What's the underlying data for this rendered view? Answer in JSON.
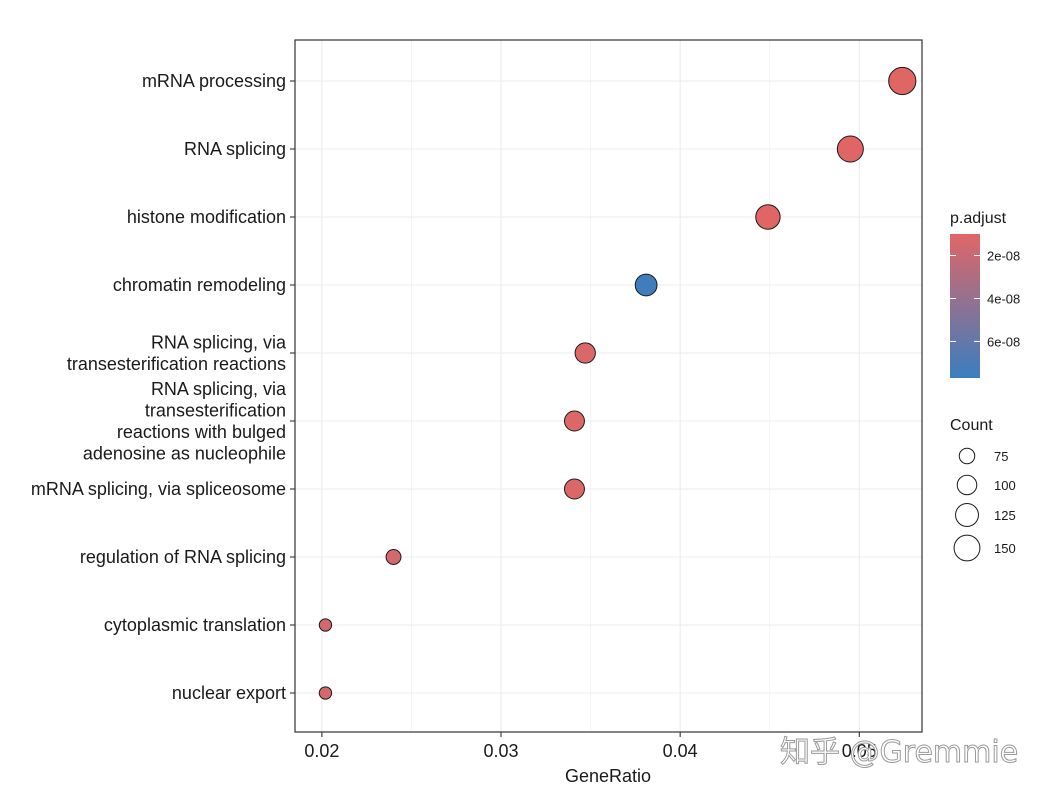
{
  "chart_data": {
    "type": "scatter",
    "xlabel": "GeneRatio",
    "x_ticks": [
      0.02,
      0.03,
      0.04,
      0.05
    ],
    "x_tick_labels": [
      "0.02",
      "0.03",
      "0.04",
      "0.05"
    ],
    "xlim": [
      0.0185,
      0.0535
    ],
    "grid": true,
    "points": [
      {
        "term": [
          "mRNA processing"
        ],
        "gene_ratio": 0.0524,
        "count": 150,
        "p_adjust": 1e-08
      },
      {
        "term": [
          "RNA splicing"
        ],
        "gene_ratio": 0.0495,
        "count": 140,
        "p_adjust": 1e-08
      },
      {
        "term": [
          "histone modification"
        ],
        "gene_ratio": 0.0449,
        "count": 127,
        "p_adjust": 1e-08
      },
      {
        "term": [
          "chromatin remodeling"
        ],
        "gene_ratio": 0.0381,
        "count": 108,
        "p_adjust": 7.5e-08
      },
      {
        "term": [
          "RNA splicing, via",
          "transesterification reactions"
        ],
        "gene_ratio": 0.0347,
        "count": 98,
        "p_adjust": 1.2e-08
      },
      {
        "term": [
          "RNA splicing, via",
          "transesterification",
          "reactions with bulged",
          "adenosine as nucleophile"
        ],
        "gene_ratio": 0.0341,
        "count": 96,
        "p_adjust": 1.2e-08
      },
      {
        "term": [
          "mRNA splicing, via spliceosome"
        ],
        "gene_ratio": 0.0341,
        "count": 96,
        "p_adjust": 1.2e-08
      },
      {
        "term": [
          "regulation of RNA splicing"
        ],
        "gene_ratio": 0.024,
        "count": 68,
        "p_adjust": 1.5e-08
      },
      {
        "term": [
          "cytoplasmic translation"
        ],
        "gene_ratio": 0.0202,
        "count": 57,
        "p_adjust": 1.5e-08
      },
      {
        "term": [
          "nuclear export"
        ],
        "gene_ratio": 0.0202,
        "count": 57,
        "p_adjust": 1.5e-08
      }
    ],
    "color_legend": {
      "title": "p.adjust",
      "ticks": [
        2e-08,
        4e-08,
        6e-08
      ],
      "tick_labels": [
        "2e-08",
        "4e-08",
        "6e-08"
      ],
      "range": [
        1e-08,
        7.7e-08
      ],
      "low_color": "#E06666",
      "high_color": "#3A7EC0"
    },
    "size_legend": {
      "title": "Count",
      "values": [
        75,
        100,
        125,
        150
      ],
      "labels": [
        "75",
        "100",
        "125",
        "150"
      ]
    },
    "size_range": [
      57,
      150
    ]
  },
  "watermark": "知乎 @Gremmie"
}
